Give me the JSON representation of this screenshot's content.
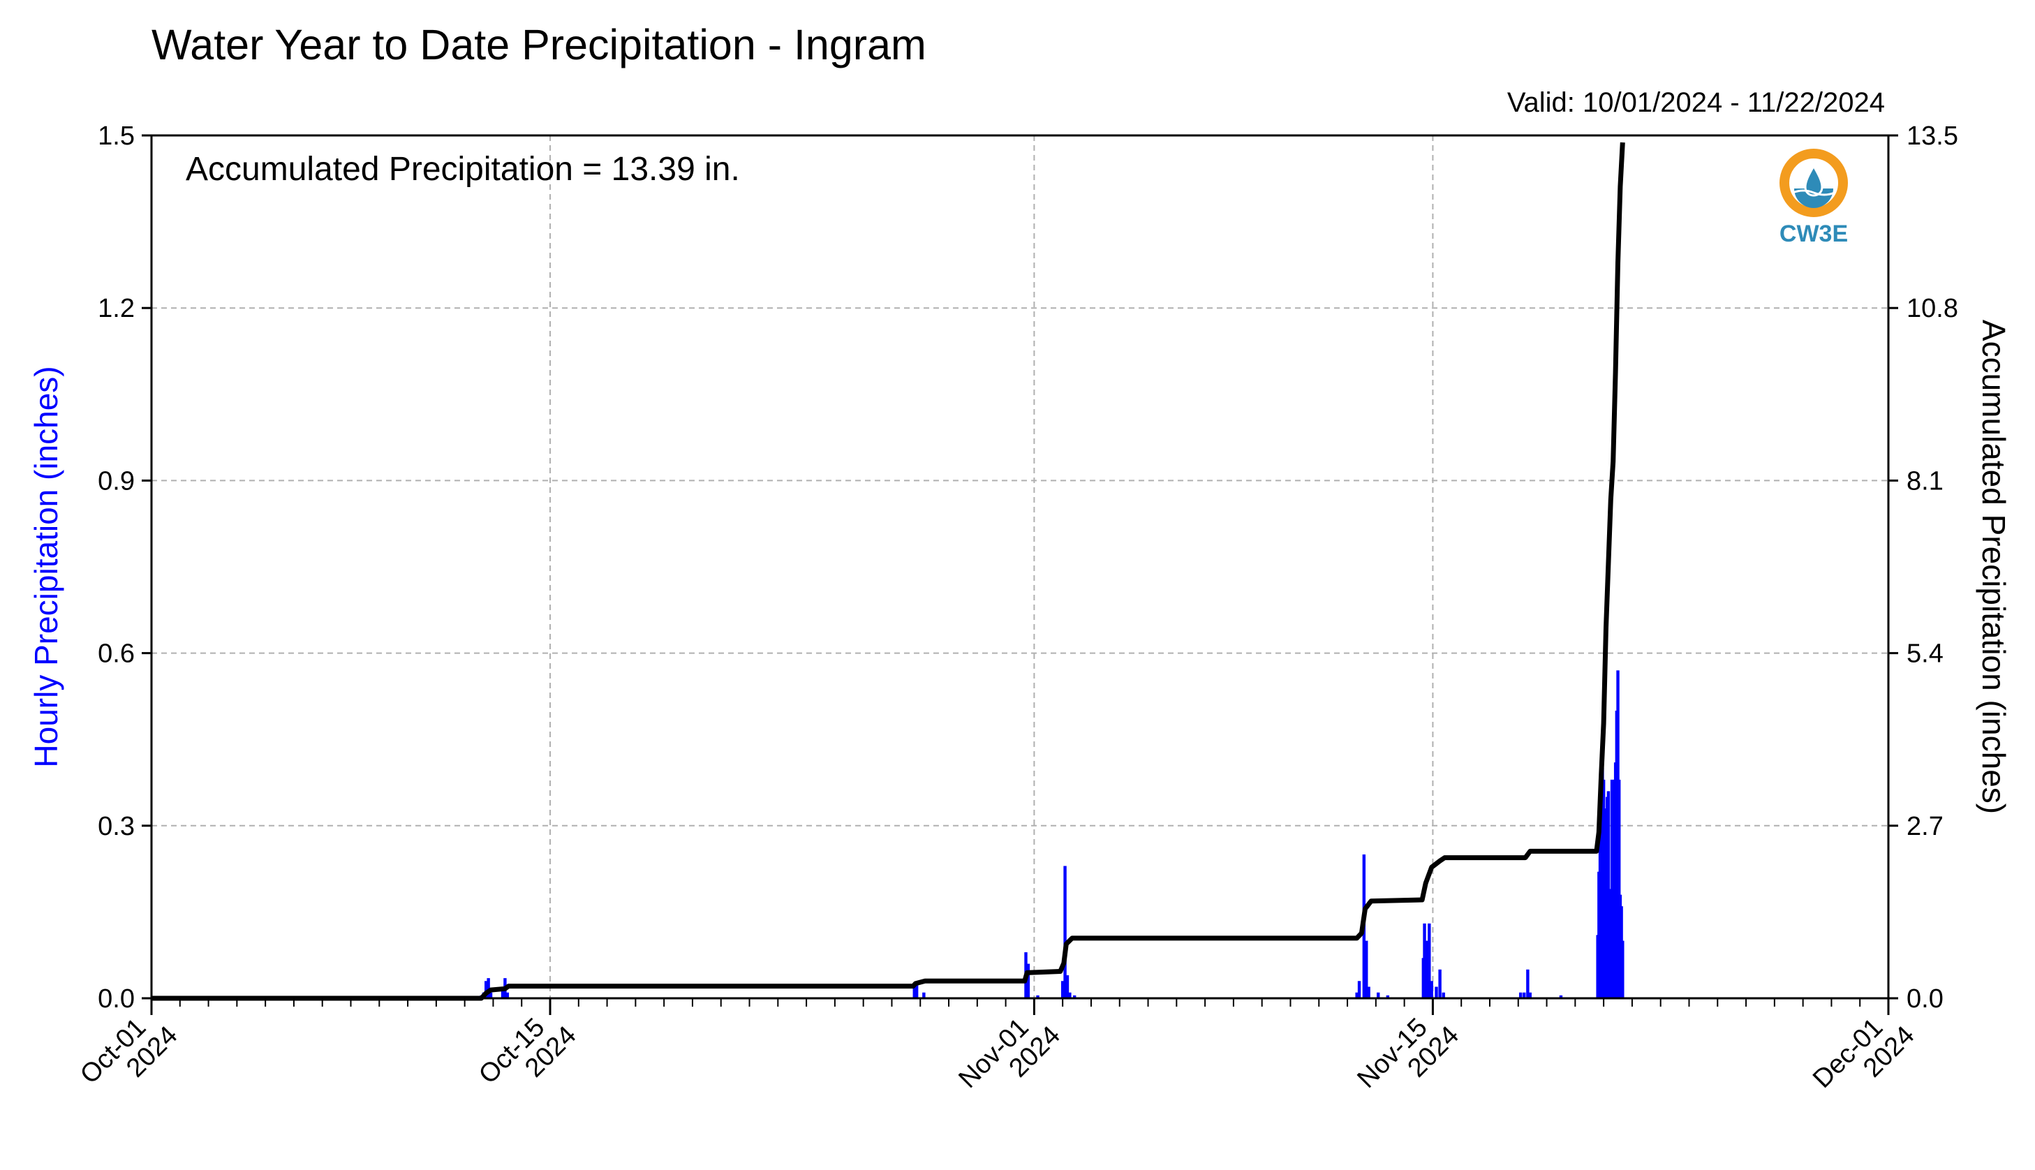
{
  "chart_data": {
    "type": "bar",
    "title": "Water Year to Date Precipitation - Ingram",
    "subtitle": "Valid: 10/01/2024 - 11/22/2024",
    "annotation": "Accumulated Precipitation = 13.39 in.",
    "ylabel": "Hourly Precipitation (inches)",
    "y2label": "Accumulated Precipitation (inches)",
    "xlim": [
      "2024-10-01",
      "2024-12-01"
    ],
    "ylim": [
      0,
      1.5
    ],
    "y2lim": [
      0,
      13.5
    ],
    "yticks": [
      "0.0",
      "0.3",
      "0.6",
      "0.9",
      "1.2",
      "1.5"
    ],
    "y2ticks": [
      "0.0",
      "2.7",
      "5.4",
      "8.1",
      "10.8",
      "13.5"
    ],
    "xticks": [
      {
        "date": "2024-10-01",
        "line1": "Oct-01",
        "line2": "2024"
      },
      {
        "date": "2024-10-15",
        "line1": "Oct-15",
        "line2": "2024"
      },
      {
        "date": "2024-11-01",
        "line1": "Nov-01",
        "line2": "2024"
      },
      {
        "date": "2024-11-15",
        "line1": "Nov-15",
        "line2": "2024"
      },
      {
        "date": "2024-12-01",
        "line1": "Dec-01",
        "line2": "2024"
      }
    ],
    "grid": true,
    "colors": {
      "hourly": "#0000ff",
      "accumulated": "#000000",
      "ylabel_left": "#0000ff"
    },
    "series": [
      {
        "type": "bar",
        "axis": "left",
        "points": [
          [
            "2024-10-12 14:00",
            0.005
          ],
          [
            "2024-10-12 16:00",
            0.01
          ],
          [
            "2024-10-12 18:00",
            0.03
          ],
          [
            "2024-10-12 20:00",
            0.035
          ],
          [
            "2024-10-12 22:00",
            0.01
          ],
          [
            "2024-10-13 08:00",
            0.02
          ],
          [
            "2024-10-13 10:00",
            0.035
          ],
          [
            "2024-10-13 12:00",
            0.01
          ],
          [
            "2024-10-27 19:00",
            0.02
          ],
          [
            "2024-10-27 21:00",
            0.025
          ],
          [
            "2024-10-28 03:00",
            0.01
          ],
          [
            "2024-10-31 17:00",
            0.08
          ],
          [
            "2024-10-31 19:00",
            0.06
          ],
          [
            "2024-11-01 03:00",
            0.005
          ],
          [
            "2024-11-02 00:00",
            0.03
          ],
          [
            "2024-11-02 02:00",
            0.23
          ],
          [
            "2024-11-02 04:00",
            0.04
          ],
          [
            "2024-11-02 06:00",
            0.01
          ],
          [
            "2024-11-02 10:00",
            0.005
          ],
          [
            "2024-11-12 08:00",
            0.01
          ],
          [
            "2024-11-12 10:00",
            0.03
          ],
          [
            "2024-11-12 14:00",
            0.25
          ],
          [
            "2024-11-12 16:00",
            0.1
          ],
          [
            "2024-11-12 18:00",
            0.02
          ],
          [
            "2024-11-13 02:00",
            0.01
          ],
          [
            "2024-11-13 10:00",
            0.005
          ],
          [
            "2024-11-14 16:00",
            0.07
          ],
          [
            "2024-11-14 17:00",
            0.13
          ],
          [
            "2024-11-14 19:00",
            0.1
          ],
          [
            "2024-11-14 21:00",
            0.13
          ],
          [
            "2024-11-14 23:00",
            0.03
          ],
          [
            "2024-11-15 03:00",
            0.02
          ],
          [
            "2024-11-15 06:00",
            0.05
          ],
          [
            "2024-11-15 09:00",
            0.01
          ],
          [
            "2024-11-18 02:00",
            0.01
          ],
          [
            "2024-11-18 05:00",
            0.01
          ],
          [
            "2024-11-18 08:00",
            0.05
          ],
          [
            "2024-11-18 10:00",
            0.01
          ],
          [
            "2024-11-19 12:00",
            0.005
          ],
          [
            "2024-11-20 19:00",
            0.11
          ],
          [
            "2024-11-20 20:00",
            0.22
          ],
          [
            "2024-11-20 21:00",
            0.3
          ],
          [
            "2024-11-20 22:00",
            0.35
          ],
          [
            "2024-11-20 23:00",
            0.4
          ],
          [
            "2024-11-21 00:00",
            0.38
          ],
          [
            "2024-11-21 01:00",
            0.33
          ],
          [
            "2024-11-21 02:00",
            0.2
          ],
          [
            "2024-11-21 03:00",
            0.35
          ],
          [
            "2024-11-21 04:00",
            0.36
          ],
          [
            "2024-11-21 05:00",
            0.18
          ],
          [
            "2024-11-21 06:00",
            0.19
          ],
          [
            "2024-11-21 07:00",
            0.38
          ],
          [
            "2024-11-21 08:00",
            0.2
          ],
          [
            "2024-11-21 09:00",
            0.38
          ],
          [
            "2024-11-21 10:00",
            0.41
          ],
          [
            "2024-11-21 11:00",
            0.5
          ],
          [
            "2024-11-21 12:00",
            0.57
          ],
          [
            "2024-11-21 13:00",
            0.38
          ],
          [
            "2024-11-21 14:00",
            0.18
          ],
          [
            "2024-11-21 15:00",
            0.16
          ],
          [
            "2024-11-21 16:00",
            0.1
          ]
        ]
      },
      {
        "type": "line",
        "axis": "right",
        "points": [
          [
            "2024-10-01 00:00",
            0.0
          ],
          [
            "2024-10-12 14:00",
            0.0
          ],
          [
            "2024-10-12 18:00",
            0.08
          ],
          [
            "2024-10-12 22:00",
            0.13
          ],
          [
            "2024-10-13 10:00",
            0.15
          ],
          [
            "2024-10-13 13:00",
            0.19
          ],
          [
            "2024-10-27 18:00",
            0.19
          ],
          [
            "2024-10-27 20:00",
            0.23
          ],
          [
            "2024-10-28 04:00",
            0.27
          ],
          [
            "2024-10-31 16:00",
            0.27
          ],
          [
            "2024-10-31 18:00",
            0.4
          ],
          [
            "2024-11-01 22:00",
            0.42
          ],
          [
            "2024-11-02 01:00",
            0.55
          ],
          [
            "2024-11-02 03:00",
            0.85
          ],
          [
            "2024-11-02 08:00",
            0.94
          ],
          [
            "2024-11-12 08:00",
            0.94
          ],
          [
            "2024-11-12 12:00",
            1.02
          ],
          [
            "2024-11-12 15:00",
            1.4
          ],
          [
            "2024-11-12 20:00",
            1.52
          ],
          [
            "2024-11-14 15:00",
            1.54
          ],
          [
            "2024-11-14 18:00",
            1.8
          ],
          [
            "2024-11-14 23:00",
            2.05
          ],
          [
            "2024-11-15 06:00",
            2.15
          ],
          [
            "2024-11-15 10:00",
            2.2
          ],
          [
            "2024-11-18 06:00",
            2.2
          ],
          [
            "2024-11-18 10:00",
            2.3
          ],
          [
            "2024-11-20 18:00",
            2.3
          ],
          [
            "2024-11-20 20:00",
            2.6
          ],
          [
            "2024-11-20 22:00",
            3.5
          ],
          [
            "2024-11-21 00:00",
            4.3
          ],
          [
            "2024-11-21 02:00",
            5.8
          ],
          [
            "2024-11-21 04:00",
            6.8
          ],
          [
            "2024-11-21 06:00",
            7.8
          ],
          [
            "2024-11-21 08:00",
            8.4
          ],
          [
            "2024-11-21 10:00",
            9.8
          ],
          [
            "2024-11-21 12:00",
            11.5
          ],
          [
            "2024-11-21 14:00",
            12.7
          ],
          [
            "2024-11-21 16:00",
            13.39
          ]
        ]
      }
    ]
  },
  "logo": {
    "text": "CW3E",
    "ring_color": "#f39c1e",
    "water_color": "#2e8bb8"
  }
}
